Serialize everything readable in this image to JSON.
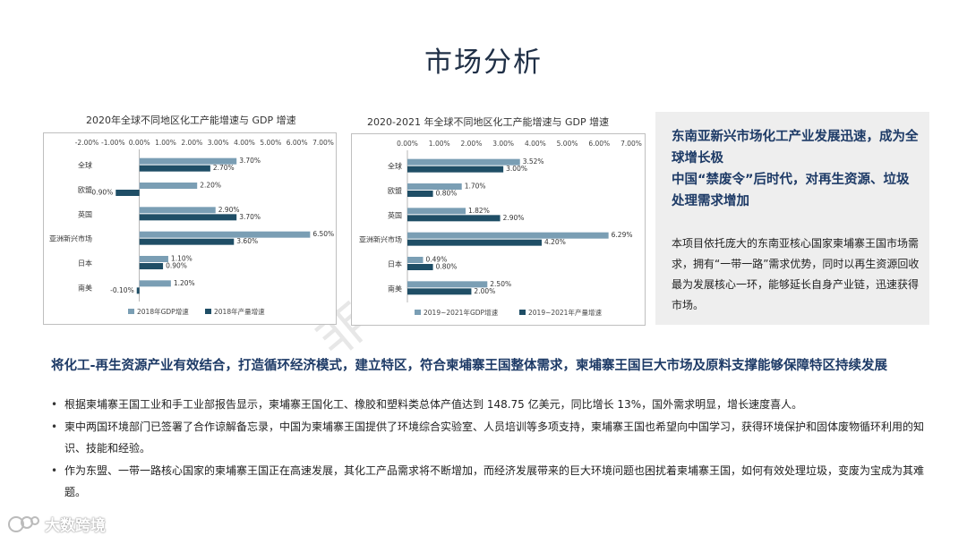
{
  "page": {
    "title": "市场分析",
    "watermark": "非会员水印",
    "logo_text": "大数跨境"
  },
  "colors": {
    "gdp": "#7a9eb4",
    "production": "#1f4e66",
    "heading": "#1d3a66"
  },
  "chart_data": [
    {
      "type": "bar",
      "orientation": "horizontal",
      "title": "2020年全球不同地区化工产能增速与 GDP 增速",
      "categories": [
        "全球",
        "欧盟",
        "英国",
        "亚洲新兴市场",
        "日本",
        "南美"
      ],
      "xlim": [
        -2.0,
        7.0
      ],
      "xticks": [
        "-2.00%",
        "-1.00%",
        "0.00%",
        "1.00%",
        "2.00%",
        "3.00%",
        "4.00%",
        "5.00%",
        "6.00%",
        "7.00%"
      ],
      "series": [
        {
          "name": "2018年GDP增速",
          "values": [
            3.7,
            2.2,
            2.9,
            6.5,
            1.1,
            1.2
          ],
          "labels": [
            "3.70%",
            "2.20%",
            "2.90%",
            "6.50%",
            "1.10%",
            "1.20%"
          ]
        },
        {
          "name": "2018年产量增速",
          "values": [
            2.7,
            -0.9,
            3.7,
            3.6,
            0.9,
            -0.1
          ],
          "labels": [
            "2.70%",
            "-0.90%",
            "3.70%",
            "3.60%",
            "0.90%",
            "-0.10%"
          ]
        }
      ],
      "legend": "bottom"
    },
    {
      "type": "bar",
      "orientation": "horizontal",
      "title": "2020-2021 年全球不同地区化工产能增速与 GDP 增速",
      "categories": [
        "全球",
        "欧盟",
        "英国",
        "亚洲新兴市场",
        "日本",
        "南美"
      ],
      "xlim": [
        0.0,
        7.0
      ],
      "xticks": [
        "0.00%",
        "1.00%",
        "2.00%",
        "3.00%",
        "4.00%",
        "5.00%",
        "6.00%",
        "7.00%"
      ],
      "series": [
        {
          "name": "2019~2021年GDP增速",
          "values": [
            3.52,
            1.7,
            1.82,
            6.29,
            0.49,
            2.5
          ],
          "labels": [
            "3.52%",
            "1.70%",
            "1.82%",
            "6.29%",
            "0.49%",
            "2.50%"
          ]
        },
        {
          "name": "2019~2021年产量增速",
          "values": [
            3.0,
            0.8,
            2.9,
            4.2,
            0.8,
            2.0
          ],
          "labels": [
            "3.00%",
            "0.80%",
            "2.90%",
            "4.20%",
            "0.80%",
            "2.00%"
          ]
        }
      ],
      "legend": "bottom"
    }
  ],
  "side_panel": {
    "heading": "东南亚新兴市场化工产业发展迅速，成为全球增长极\n中国“禁废令”后时代，对再生资源、垃圾处理需求增加",
    "body": "本项目依托庞大的东南亚核心国家柬埔寨王国市场需求，拥有“一带一路”需求优势，同时以再生资源回收最为发展核心一环，能够延长自身产业链，迅速获得市场。"
  },
  "main": {
    "heading": "将化工-再生资源产业有效结合，打造循环经济模式，建立特区，符合柬埔寨王国整体需求，柬埔寨王国巨大市场及原料支撑能够保障特区持续发展",
    "bullets": [
      "根据柬埔寨王国工业和手工业部报告显示，柬埔寨王国化工、橡胶和塑料类总体产值达到 148.75 亿美元，同比增长 13%，国外需求明显，增长速度喜人。",
      "柬中两国环境部门已签署了合作谅解备忘录，中国为柬埔寨王国提供了环境综合实验室、人员培训等多项支持，柬埔寨王国也希望向中国学习，获得环境保护和固体废物循环利用的知识、技能和经验。",
      "作为东盟、一带一路核心国家的柬埔寨王国正在高速发展，其化工产品需求将不断增加，而经济发展带来的巨大环境问题也困扰着柬埔寨王国，如何有效处理垃圾，变废为宝成为其难题。"
    ]
  }
}
